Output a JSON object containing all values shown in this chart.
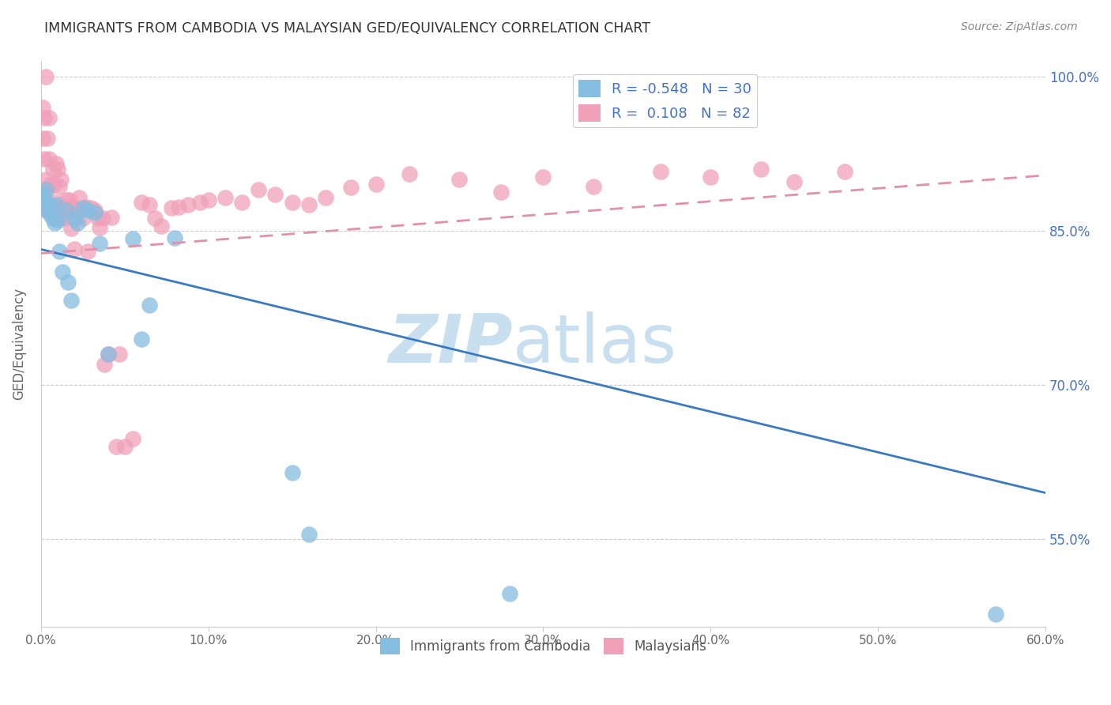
{
  "title": "IMMIGRANTS FROM CAMBODIA VS MALAYSIAN GED/EQUIVALENCY CORRELATION CHART",
  "source": "Source: ZipAtlas.com",
  "ylabel": "GED/Equivalency",
  "legend_label_blue": "Immigrants from Cambodia",
  "legend_label_pink": "Malaysians",
  "r_blue": -0.548,
  "n_blue": 30,
  "r_pink": 0.108,
  "n_pink": 82,
  "color_blue": "#85bde0",
  "color_pink": "#f0a0b8",
  "color_blue_line": "#3a7abf",
  "color_pink_line": "#e090a8",
  "xlim": [
    0.0,
    0.6
  ],
  "ylim": [
    0.465,
    1.015
  ],
  "xticks": [
    0.0,
    0.1,
    0.2,
    0.3,
    0.4,
    0.5,
    0.6
  ],
  "yticks": [
    0.55,
    0.7,
    0.85,
    1.0
  ],
  "xticklabels": [
    "0.0%",
    "10.0%",
    "20.0%",
    "30.0%",
    "40.0%",
    "50.0%",
    "60.0%"
  ],
  "yticklabels": [
    "55.0%",
    "70.0%",
    "85.0%",
    "100.0%"
  ],
  "blue_line_x": [
    0.0,
    0.6
  ],
  "blue_line_y": [
    0.832,
    0.595
  ],
  "pink_line_x": [
    0.0,
    0.6
  ],
  "pink_line_y": [
    0.828,
    0.904
  ],
  "blue_scatter_x": [
    0.001,
    0.002,
    0.003,
    0.004,
    0.005,
    0.006,
    0.007,
    0.008,
    0.009,
    0.01,
    0.011,
    0.013,
    0.015,
    0.016,
    0.018,
    0.02,
    0.022,
    0.025,
    0.028,
    0.032,
    0.035,
    0.04,
    0.055,
    0.06,
    0.065,
    0.08,
    0.15,
    0.16,
    0.28,
    0.57
  ],
  "blue_scatter_y": [
    0.885,
    0.88,
    0.89,
    0.87,
    0.875,
    0.865,
    0.862,
    0.858,
    0.875,
    0.86,
    0.83,
    0.81,
    0.87,
    0.8,
    0.782,
    0.862,
    0.858,
    0.872,
    0.87,
    0.868,
    0.838,
    0.73,
    0.842,
    0.745,
    0.778,
    0.843,
    0.615,
    0.555,
    0.497,
    0.477
  ],
  "pink_scatter_x": [
    0.001,
    0.001,
    0.002,
    0.002,
    0.003,
    0.003,
    0.003,
    0.004,
    0.004,
    0.005,
    0.005,
    0.005,
    0.006,
    0.006,
    0.007,
    0.007,
    0.008,
    0.008,
    0.009,
    0.009,
    0.01,
    0.01,
    0.011,
    0.011,
    0.012,
    0.012,
    0.013,
    0.013,
    0.014,
    0.015,
    0.015,
    0.016,
    0.017,
    0.018,
    0.019,
    0.02,
    0.021,
    0.022,
    0.023,
    0.025,
    0.027,
    0.028,
    0.03,
    0.032,
    0.034,
    0.035,
    0.037,
    0.038,
    0.04,
    0.042,
    0.045,
    0.047,
    0.05,
    0.055,
    0.06,
    0.065,
    0.068,
    0.072,
    0.078,
    0.082,
    0.088,
    0.095,
    0.1,
    0.11,
    0.12,
    0.13,
    0.14,
    0.15,
    0.16,
    0.17,
    0.185,
    0.2,
    0.22,
    0.25,
    0.275,
    0.3,
    0.33,
    0.37,
    0.4,
    0.43,
    0.45,
    0.48
  ],
  "pink_scatter_y": [
    0.97,
    0.94,
    0.96,
    0.92,
    0.9,
    0.87,
    1.0,
    0.94,
    0.89,
    0.92,
    0.87,
    0.96,
    0.895,
    0.875,
    0.91,
    0.872,
    0.895,
    0.873,
    0.915,
    0.878,
    0.91,
    0.873,
    0.893,
    0.862,
    0.872,
    0.9,
    0.865,
    0.87,
    0.862,
    0.88,
    0.87,
    0.873,
    0.88,
    0.852,
    0.87,
    0.832,
    0.872,
    0.87,
    0.882,
    0.862,
    0.873,
    0.83,
    0.872,
    0.87,
    0.862,
    0.853,
    0.862,
    0.72,
    0.73,
    0.863,
    0.64,
    0.73,
    0.64,
    0.648,
    0.878,
    0.875,
    0.862,
    0.855,
    0.872,
    0.873,
    0.875,
    0.878,
    0.88,
    0.882,
    0.878,
    0.89,
    0.885,
    0.878,
    0.875,
    0.882,
    0.892,
    0.895,
    0.905,
    0.9,
    0.888,
    0.902,
    0.893,
    0.908,
    0.902,
    0.91,
    0.898,
    0.908
  ],
  "watermark_zip": "ZIP",
  "watermark_atlas": "atlas",
  "watermark_color": "#c8dff0",
  "background_color": "#ffffff",
  "grid_color": "#cccccc"
}
